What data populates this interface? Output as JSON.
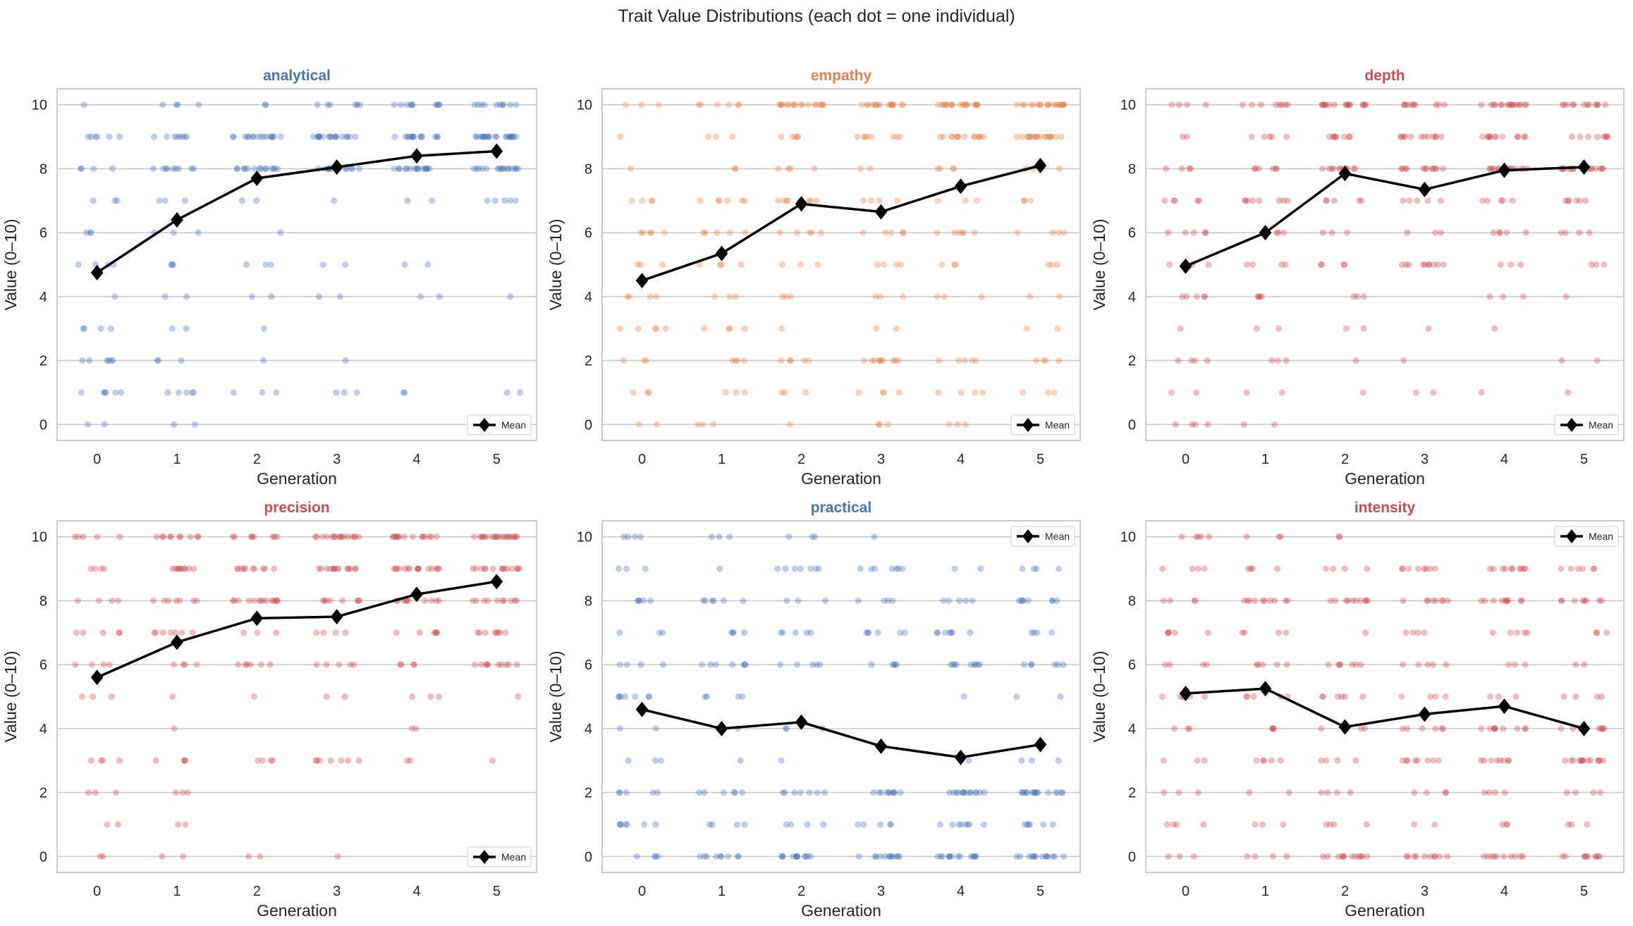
{
  "figure_title": "Trait Value Distributions (each dot = one individual)",
  "chart_data": [
    {
      "type": "scatter",
      "title": "analytical",
      "title_color": "#4c72b0",
      "dot_color": "#4c72b0",
      "xlabel": "Generation",
      "ylabel": "Value (0–10)",
      "x_ticks": [
        "0",
        "1",
        "2",
        "3",
        "4",
        "5"
      ],
      "y_ticks": [
        "0",
        "2",
        "4",
        "6",
        "8",
        "10"
      ],
      "xlim": [
        -0.5,
        5.5
      ],
      "ylim": [
        -0.5,
        10.5
      ],
      "grid": "horizontal",
      "legend": "lower right",
      "legend_label": "Mean",
      "counts_by_generation_value_0_to_10": [
        [
          2,
          6,
          6,
          4,
          1,
          4,
          3,
          3,
          4,
          6,
          1
        ],
        [
          2,
          5,
          3,
          2,
          2,
          3,
          3,
          3,
          9,
          8,
          4
        ],
        [
          0,
          3,
          1,
          1,
          2,
          3,
          1,
          2,
          14,
          16,
          2
        ],
        [
          0,
          3,
          1,
          0,
          2,
          2,
          0,
          1,
          14,
          18,
          6
        ],
        [
          0,
          2,
          0,
          0,
          2,
          2,
          0,
          2,
          16,
          14,
          10
        ],
        [
          0,
          2,
          0,
          0,
          1,
          0,
          0,
          5,
          16,
          22,
          10
        ]
      ],
      "mean": [
        4.75,
        6.4,
        7.7,
        8.05,
        8.4,
        8.55
      ]
    },
    {
      "type": "scatter",
      "title": "empathy",
      "title_color": "#dd8452",
      "dot_color": "#dd8452",
      "xlabel": "Generation",
      "ylabel": "Value (0–10)",
      "x_ticks": [
        "0",
        "1",
        "2",
        "3",
        "4",
        "5"
      ],
      "y_ticks": [
        "0",
        "2",
        "4",
        "6",
        "8",
        "10"
      ],
      "xlim": [
        -0.5,
        5.5
      ],
      "ylim": [
        -0.5,
        10.5
      ],
      "grid": "horizontal",
      "legend": "lower right",
      "legend_label": "Mean",
      "counts_by_generation_value_0_to_10": [
        [
          2,
          3,
          3,
          5,
          4,
          3,
          5,
          4,
          1,
          1,
          3
        ],
        [
          3,
          3,
          4,
          4,
          3,
          4,
          5,
          6,
          2,
          3,
          6
        ],
        [
          1,
          3,
          5,
          1,
          3,
          3,
          5,
          8,
          4,
          5,
          18
        ],
        [
          3,
          4,
          10,
          2,
          3,
          4,
          5,
          4,
          2,
          8,
          16
        ],
        [
          3,
          4,
          5,
          0,
          3,
          3,
          6,
          3,
          4,
          14,
          20
        ],
        [
          0,
          3,
          4,
          2,
          2,
          3,
          4,
          3,
          3,
          20,
          20
        ]
      ],
      "mean": [
        4.5,
        5.35,
        6.9,
        6.65,
        7.45,
        8.1
      ]
    },
    {
      "type": "scatter",
      "title": "depth",
      "title_color": "#c44e52",
      "dot_color": "#c44e52",
      "xlabel": "Generation",
      "ylabel": "Value (0–10)",
      "x_ticks": [
        "0",
        "1",
        "2",
        "3",
        "4",
        "5"
      ],
      "y_ticks": [
        "0",
        "2",
        "4",
        "6",
        "8",
        "10"
      ],
      "xlim": [
        -0.5,
        5.5
      ],
      "ylim": [
        -0.5,
        10.5
      ],
      "grid": "horizontal",
      "legend": "lower right",
      "legend_label": "Mean",
      "counts_by_generation_value_0_to_10": [
        [
          4,
          2,
          4,
          1,
          5,
          4,
          5,
          5,
          4,
          2,
          4
        ],
        [
          2,
          2,
          3,
          2,
          4,
          4,
          5,
          8,
          6,
          5,
          8
        ],
        [
          0,
          1,
          1,
          2,
          3,
          4,
          3,
          5,
          12,
          8,
          16
        ],
        [
          0,
          2,
          1,
          1,
          0,
          10,
          3,
          5,
          12,
          12,
          10
        ],
        [
          0,
          1,
          0,
          1,
          3,
          3,
          5,
          5,
          14,
          12,
          16
        ],
        [
          0,
          1,
          2,
          0,
          1,
          3,
          4,
          6,
          16,
          8,
          12
        ]
      ],
      "mean": [
        4.95,
        6.0,
        7.85,
        7.35,
        7.95,
        8.05
      ]
    },
    {
      "type": "scatter",
      "title": "precision",
      "title_color": "#c44e52",
      "dot_color": "#c44e52",
      "xlabel": "Generation",
      "ylabel": "Value (0–10)",
      "x_ticks": [
        "0",
        "1",
        "2",
        "3",
        "4",
        "5"
      ],
      "y_ticks": [
        "0",
        "2",
        "4",
        "6",
        "8",
        "10"
      ],
      "xlim": [
        -0.5,
        5.5
      ],
      "ylim": [
        -0.5,
        10.5
      ],
      "grid": "horizontal",
      "legend": "lower right",
      "legend_label": "Mean",
      "counts_by_generation_value_0_to_10": [
        [
          2,
          2,
          3,
          4,
          0,
          3,
          4,
          5,
          4,
          4,
          5
        ],
        [
          2,
          2,
          3,
          4,
          1,
          1,
          4,
          7,
          7,
          10,
          10
        ],
        [
          2,
          0,
          0,
          4,
          0,
          1,
          6,
          3,
          14,
          10,
          8
        ],
        [
          1,
          0,
          0,
          7,
          0,
          2,
          5,
          4,
          8,
          14,
          16
        ],
        [
          0,
          0,
          0,
          2,
          2,
          3,
          4,
          6,
          10,
          16,
          14
        ],
        [
          0,
          0,
          0,
          1,
          0,
          1,
          10,
          8,
          10,
          14,
          20
        ]
      ],
      "mean": [
        5.6,
        6.7,
        7.45,
        7.5,
        8.2,
        8.6
      ]
    },
    {
      "type": "scatter",
      "title": "practical",
      "title_color": "#4c72b0",
      "dot_color": "#4c72b0",
      "xlabel": "Generation",
      "ylabel": "Value (0–10)",
      "x_ticks": [
        "0",
        "1",
        "2",
        "3",
        "4",
        "5"
      ],
      "y_ticks": [
        "0",
        "2",
        "4",
        "6",
        "8",
        "10"
      ],
      "xlim": [
        -0.5,
        5.5
      ],
      "ylim": [
        -0.5,
        10.5
      ],
      "grid": "horizontal",
      "legend": "upper right",
      "legend_label": "Mean",
      "counts_by_generation_value_0_to_10": [
        [
          4,
          7,
          5,
          3,
          2,
          7,
          4,
          3,
          5,
          3,
          4
        ],
        [
          9,
          4,
          6,
          1,
          2,
          4,
          7,
          4,
          6,
          1,
          3
        ],
        [
          12,
          4,
          7,
          1,
          3,
          0,
          5,
          5,
          3,
          7,
          3
        ],
        [
          12,
          5,
          10,
          0,
          0,
          0,
          5,
          6,
          4,
          7,
          1
        ],
        [
          14,
          8,
          14,
          1,
          0,
          1,
          9,
          7,
          5,
          2,
          0
        ],
        [
          14,
          6,
          16,
          3,
          0,
          2,
          6,
          4,
          8,
          4,
          0
        ]
      ],
      "mean": [
        4.6,
        4.0,
        4.2,
        3.45,
        3.1,
        3.5
      ]
    },
    {
      "type": "scatter",
      "title": "intensity",
      "title_color": "#c44e52",
      "dot_color": "#c44e52",
      "xlabel": "Generation",
      "ylabel": "Value (0–10)",
      "x_ticks": [
        "0",
        "1",
        "2",
        "3",
        "4",
        "5"
      ],
      "y_ticks": [
        "0",
        "2",
        "4",
        "6",
        "8",
        "10"
      ],
      "xlim": [
        -0.5,
        5.5
      ],
      "ylim": [
        -0.5,
        10.5
      ],
      "grid": "horizontal",
      "legend": "upper right",
      "legend_label": "Mean",
      "counts_by_generation_value_0_to_10": [
        [
          3,
          4,
          3,
          3,
          3,
          6,
          4,
          5,
          4,
          4,
          5
        ],
        [
          4,
          3,
          2,
          5,
          4,
          5,
          5,
          4,
          10,
          4,
          3
        ],
        [
          12,
          4,
          4,
          4,
          4,
          6,
          7,
          1,
          10,
          4,
          2
        ],
        [
          10,
          2,
          4,
          8,
          6,
          4,
          5,
          4,
          8,
          8,
          0
        ],
        [
          10,
          3,
          4,
          8,
          10,
          3,
          3,
          5,
          10,
          10,
          0
        ],
        [
          10,
          3,
          4,
          14,
          8,
          4,
          2,
          3,
          8,
          6,
          0
        ]
      ],
      "mean": [
        5.1,
        5.25,
        4.05,
        4.45,
        4.7,
        4.0
      ]
    }
  ]
}
